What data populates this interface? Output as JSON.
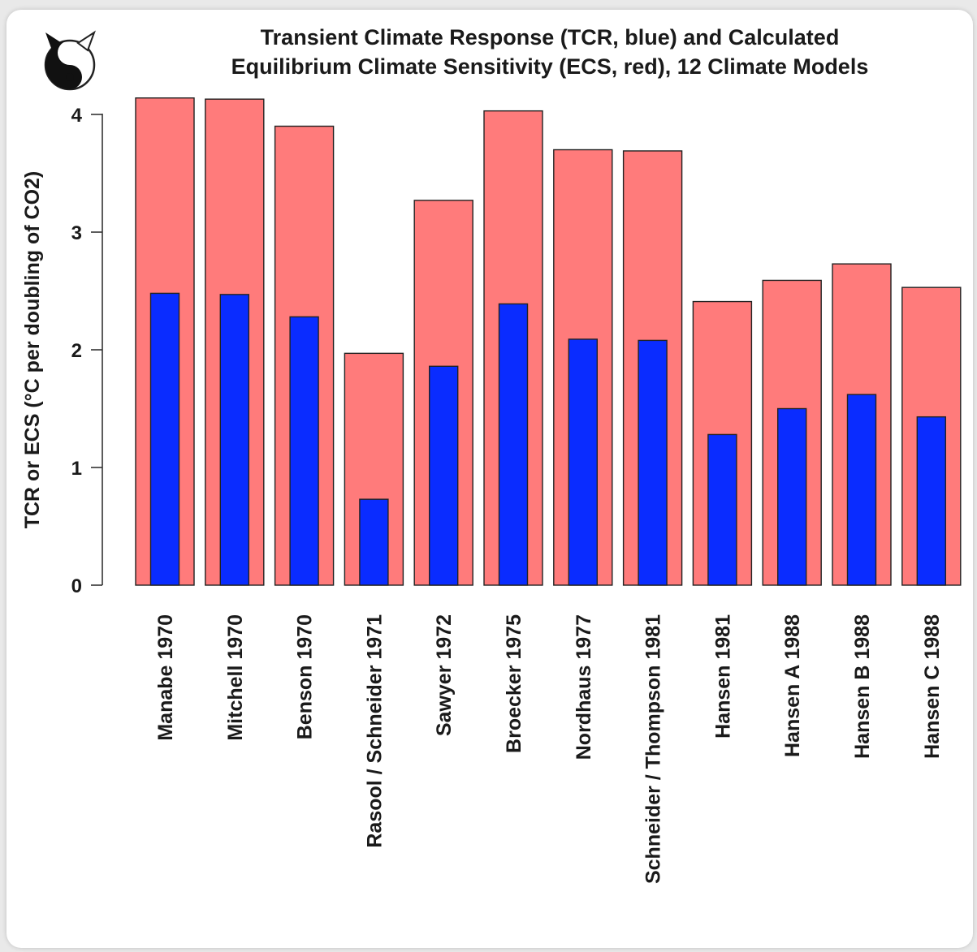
{
  "chart_data": {
    "type": "bar",
    "title_lines": [
      "Transient Climate Response (TCR, blue) and Calculated",
      "Equilibrium Climate Sensitivity (ECS, red), 12 Climate Models"
    ],
    "xlabel": "",
    "ylabel": "TCR or ECS (°C per doubling of CO2)",
    "ylim": [
      0,
      4
    ],
    "yticks": [
      0,
      1,
      2,
      3,
      4
    ],
    "grid": false,
    "legend": "none",
    "categories": [
      "Manabe 1970",
      "Mitchell 1970",
      "Benson 1970",
      "Rasool / Schneider 1971",
      "Sawyer 1972",
      "Broecker 1975",
      "Nordhaus 1977",
      "Schneider / Thompson 1981",
      "Hansen 1981",
      "Hansen A 1988",
      "Hansen B 1988",
      "Hansen C 1988"
    ],
    "series": [
      {
        "key": "ecs",
        "color": "#ff7b7b",
        "values": [
          4.14,
          4.13,
          3.9,
          1.97,
          3.27,
          4.03,
          3.7,
          3.69,
          2.41,
          2.59,
          2.73,
          2.53
        ]
      },
      {
        "key": "tcr",
        "color": "#0a2cff",
        "values": [
          2.48,
          2.47,
          2.28,
          0.73,
          1.86,
          2.39,
          2.09,
          2.08,
          1.28,
          1.5,
          1.62,
          1.43
        ]
      }
    ]
  },
  "logo": {
    "icon": "yin-yang-cat-icon"
  }
}
